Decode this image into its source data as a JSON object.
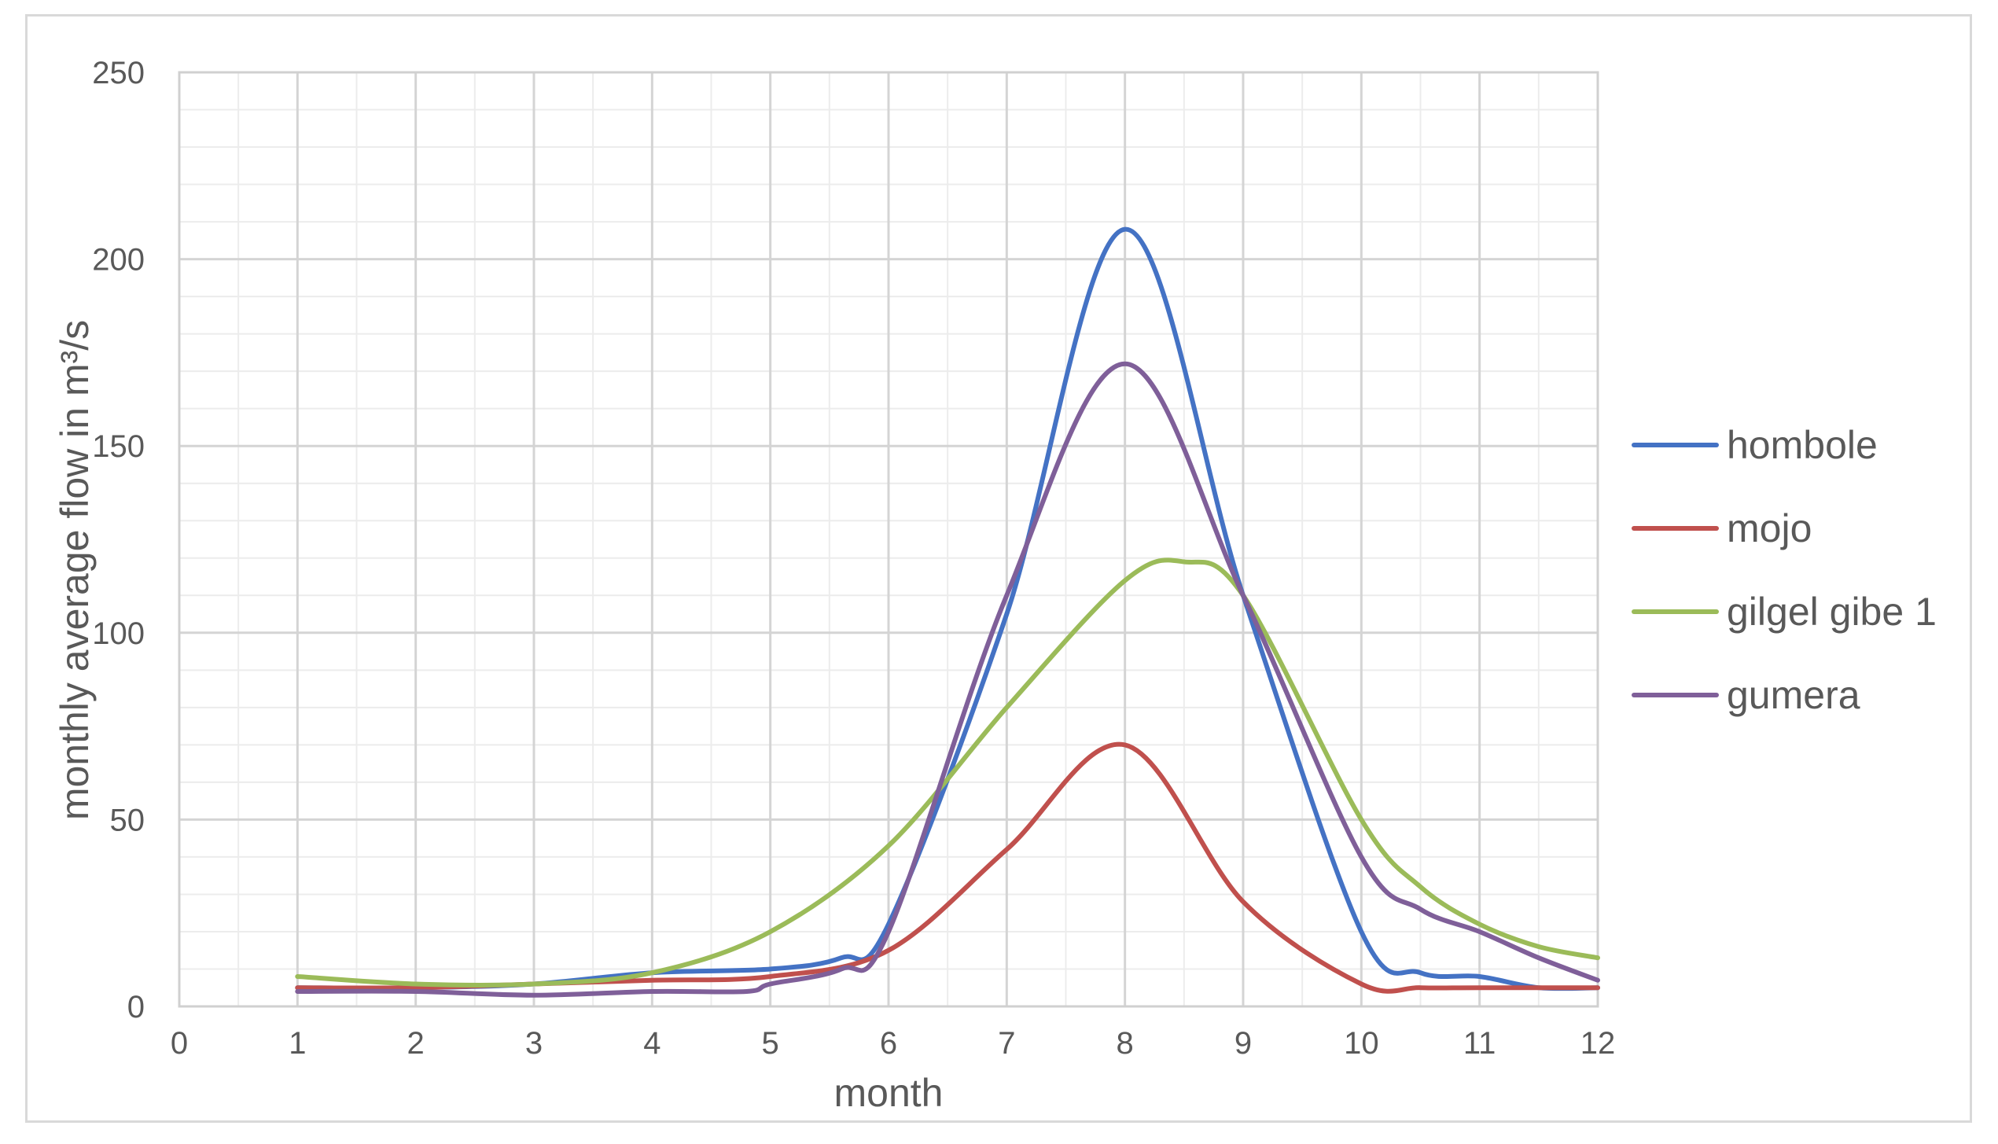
{
  "chart_data": {
    "type": "line",
    "title": "",
    "xlabel": "month",
    "ylabel": "monthly average flow in m³/s",
    "xlim": [
      0,
      12
    ],
    "ylim": [
      0,
      250
    ],
    "xticks": [
      0,
      1,
      2,
      3,
      4,
      5,
      6,
      7,
      8,
      9,
      10,
      11,
      12
    ],
    "yticks": [
      0,
      50,
      100,
      150,
      200,
      250
    ],
    "grid": true,
    "legend_position": "right",
    "series": [
      {
        "name": "hombole",
        "color": "#4472c4",
        "points": [
          [
            1,
            5
          ],
          [
            2,
            5
          ],
          [
            3,
            6
          ],
          [
            4,
            9
          ],
          [
            5,
            10
          ],
          [
            5.6,
            13
          ],
          [
            6,
            22
          ],
          [
            7,
            105
          ],
          [
            8,
            208
          ],
          [
            9,
            110
          ],
          [
            10,
            20
          ],
          [
            10.5,
            9
          ],
          [
            11,
            8
          ],
          [
            11.5,
            5
          ],
          [
            12,
            5
          ]
        ]
      },
      {
        "name": "mojo",
        "color": "#c0504d",
        "points": [
          [
            1,
            5
          ],
          [
            2,
            5
          ],
          [
            3,
            6
          ],
          [
            4,
            7
          ],
          [
            5,
            8
          ],
          [
            6,
            15
          ],
          [
            7,
            42
          ],
          [
            8,
            70
          ],
          [
            9,
            28
          ],
          [
            10,
            6
          ],
          [
            10.5,
            5
          ],
          [
            11,
            5
          ],
          [
            12,
            5
          ]
        ]
      },
      {
        "name": "gilgel gibe 1",
        "color": "#9bbb59",
        "points": [
          [
            1,
            8
          ],
          [
            2,
            6
          ],
          [
            3,
            6
          ],
          [
            4,
            9
          ],
          [
            5,
            20
          ],
          [
            6,
            43
          ],
          [
            7,
            80
          ],
          [
            8,
            114
          ],
          [
            8.5,
            119
          ],
          [
            9,
            110
          ],
          [
            10,
            50
          ],
          [
            10.5,
            32
          ],
          [
            11,
            22
          ],
          [
            11.5,
            16
          ],
          [
            12,
            13
          ]
        ]
      },
      {
        "name": "gumera",
        "color": "#7f5f99",
        "points": [
          [
            1,
            4
          ],
          [
            2,
            4
          ],
          [
            3,
            3
          ],
          [
            4,
            4
          ],
          [
            4.8,
            4
          ],
          [
            5,
            6
          ],
          [
            5.6,
            10
          ],
          [
            6,
            20
          ],
          [
            7,
            110
          ],
          [
            8,
            172
          ],
          [
            9,
            110
          ],
          [
            10,
            40
          ],
          [
            10.5,
            26
          ],
          [
            11,
            20
          ],
          [
            11.5,
            13
          ],
          [
            12,
            7
          ]
        ]
      }
    ]
  }
}
